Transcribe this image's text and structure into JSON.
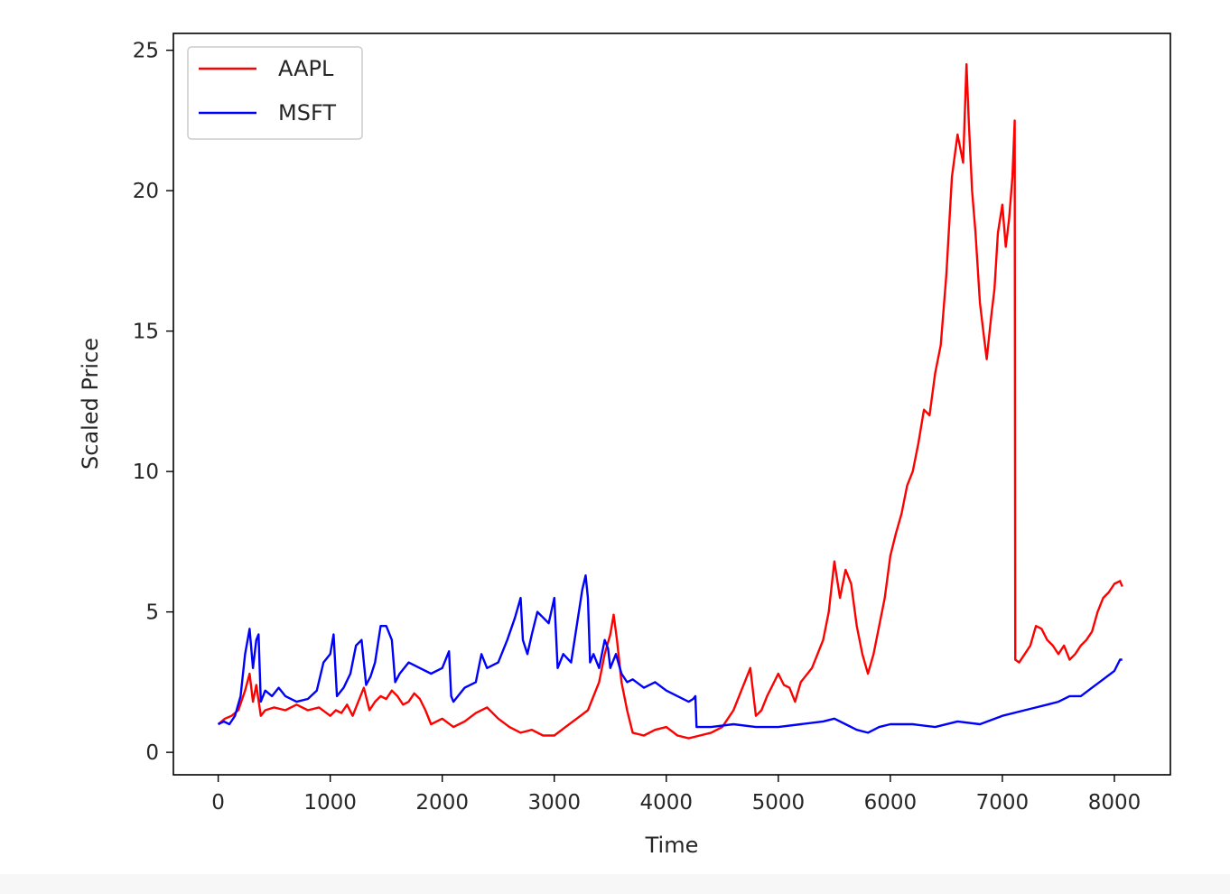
{
  "chart_data": {
    "type": "line",
    "title": "",
    "xlabel": "Time",
    "ylabel": "Scaled Price",
    "xlim": [
      -400,
      8500
    ],
    "ylim": [
      -0.8,
      25.6
    ],
    "xticks": [
      0,
      1000,
      2000,
      3000,
      4000,
      5000,
      6000,
      7000,
      8000
    ],
    "xtick_labels": [
      "0",
      "1000",
      "2000",
      "3000",
      "4000",
      "5000",
      "6000",
      "7000",
      "8000"
    ],
    "yticks": [
      0,
      5,
      10,
      15,
      20,
      25
    ],
    "ytick_labels": [
      "0",
      "5",
      "10",
      "15",
      "20",
      "25"
    ],
    "grid": false,
    "legend_position": "top-left",
    "series": [
      {
        "name": "AAPL",
        "color": "#ff0000",
        "x": [
          0,
          60,
          120,
          180,
          240,
          280,
          310,
          340,
          380,
          420,
          500,
          600,
          700,
          800,
          900,
          1000,
          1050,
          1100,
          1150,
          1200,
          1250,
          1300,
          1350,
          1400,
          1450,
          1500,
          1550,
          1600,
          1650,
          1700,
          1750,
          1800,
          1850,
          1900,
          2000,
          2100,
          2200,
          2300,
          2400,
          2500,
          2600,
          2700,
          2800,
          2900,
          3000,
          3100,
          3200,
          3300,
          3400,
          3450,
          3500,
          3530,
          3560,
          3600,
          3650,
          3700,
          3800,
          3900,
          4000,
          4100,
          4200,
          4300,
          4400,
          4500,
          4600,
          4700,
          4750,
          4800,
          4850,
          4900,
          4950,
          5000,
          5050,
          5100,
          5150,
          5200,
          5300,
          5400,
          5450,
          5500,
          5550,
          5600,
          5650,
          5700,
          5750,
          5800,
          5850,
          5900,
          5950,
          6000,
          6050,
          6100,
          6150,
          6200,
          6250,
          6300,
          6350,
          6400,
          6450,
          6500,
          6550,
          6600,
          6650,
          6680,
          6700,
          6730,
          6760,
          6800,
          6830,
          6860,
          6900,
          6930,
          6960,
          7000,
          7030,
          7060,
          7090,
          7110,
          7115,
          7150,
          7200,
          7250,
          7300,
          7350,
          7400,
          7450,
          7500,
          7550,
          7600,
          7650,
          7700,
          7750,
          7800,
          7850,
          7900,
          7950,
          8000,
          8050,
          8070
        ],
        "y": [
          1.0,
          1.2,
          1.3,
          1.5,
          2.2,
          2.8,
          1.8,
          2.4,
          1.3,
          1.5,
          1.6,
          1.5,
          1.7,
          1.5,
          1.6,
          1.3,
          1.5,
          1.4,
          1.7,
          1.3,
          1.8,
          2.3,
          1.5,
          1.8,
          2.0,
          1.9,
          2.2,
          2.0,
          1.7,
          1.8,
          2.1,
          1.9,
          1.5,
          1.0,
          1.2,
          0.9,
          1.1,
          1.4,
          1.6,
          1.2,
          0.9,
          0.7,
          0.8,
          0.6,
          0.6,
          0.9,
          1.2,
          1.5,
          2.5,
          3.5,
          4.2,
          4.9,
          4.0,
          2.5,
          1.5,
          0.7,
          0.6,
          0.8,
          0.9,
          0.6,
          0.5,
          0.6,
          0.7,
          0.9,
          1.5,
          2.5,
          3.0,
          1.3,
          1.5,
          2.0,
          2.4,
          2.8,
          2.4,
          2.3,
          1.8,
          2.5,
          3.0,
          4.0,
          5.0,
          6.8,
          5.5,
          6.5,
          6.0,
          4.5,
          3.5,
          2.8,
          3.5,
          4.5,
          5.5,
          7.0,
          7.8,
          8.5,
          9.5,
          10.0,
          11.0,
          12.2,
          12.0,
          13.5,
          14.5,
          17.0,
          20.5,
          22.0,
          21.0,
          24.5,
          22.5,
          20.0,
          18.5,
          16.0,
          15.0,
          14.0,
          15.5,
          16.5,
          18.5,
          19.5,
          18.0,
          19.0,
          20.5,
          22.5,
          3.3,
          3.2,
          3.5,
          3.8,
          4.5,
          4.4,
          4.0,
          3.8,
          3.5,
          3.8,
          3.3,
          3.5,
          3.8,
          4.0,
          4.3,
          5.0,
          5.5,
          5.7,
          6.0,
          6.1,
          5.9
        ]
      },
      {
        "name": "MSFT",
        "color": "#0000ff",
        "x": [
          0,
          50,
          100,
          150,
          200,
          240,
          280,
          310,
          340,
          360,
          380,
          420,
          480,
          540,
          600,
          700,
          800,
          880,
          940,
          1000,
          1030,
          1060,
          1120,
          1180,
          1230,
          1280,
          1320,
          1360,
          1400,
          1450,
          1500,
          1550,
          1580,
          1620,
          1700,
          1800,
          1900,
          2000,
          2060,
          2080,
          2100,
          2200,
          2300,
          2350,
          2400,
          2500,
          2580,
          2650,
          2700,
          2720,
          2760,
          2800,
          2850,
          2900,
          2950,
          3000,
          3030,
          3080,
          3150,
          3200,
          3250,
          3280,
          3300,
          3320,
          3350,
          3400,
          3450,
          3480,
          3500,
          3550,
          3600,
          3650,
          3700,
          3800,
          3900,
          4000,
          4100,
          4200,
          4240,
          4260,
          4270,
          4400,
          4600,
          4800,
          5000,
          5200,
          5400,
          5500,
          5600,
          5700,
          5800,
          5900,
          6000,
          6200,
          6400,
          6600,
          6800,
          7000,
          7200,
          7400,
          7500,
          7600,
          7700,
          7800,
          7900,
          8000,
          8050,
          8070
        ],
        "y": [
          1.0,
          1.1,
          1.0,
          1.3,
          2.0,
          3.5,
          4.4,
          3.0,
          4.0,
          4.2,
          1.8,
          2.2,
          2.0,
          2.3,
          2.0,
          1.8,
          1.9,
          2.2,
          3.2,
          3.5,
          4.2,
          2.0,
          2.3,
          2.8,
          3.8,
          4.0,
          2.4,
          2.7,
          3.2,
          4.5,
          4.5,
          4.0,
          2.5,
          2.8,
          3.2,
          3.0,
          2.8,
          3.0,
          3.6,
          2.0,
          1.8,
          2.3,
          2.5,
          3.5,
          3.0,
          3.2,
          4.0,
          4.8,
          5.5,
          4.0,
          3.5,
          4.2,
          5.0,
          4.8,
          4.6,
          5.5,
          3.0,
          3.5,
          3.2,
          4.5,
          5.8,
          6.3,
          5.5,
          3.2,
          3.5,
          3.0,
          4.0,
          3.7,
          3.0,
          3.5,
          2.8,
          2.5,
          2.6,
          2.3,
          2.5,
          2.2,
          2.0,
          1.8,
          1.9,
          2.0,
          0.9,
          0.9,
          1.0,
          0.9,
          0.9,
          1.0,
          1.1,
          1.2,
          1.0,
          0.8,
          0.7,
          0.9,
          1.0,
          1.0,
          0.9,
          1.1,
          1.0,
          1.3,
          1.5,
          1.7,
          1.8,
          2.0,
          2.0,
          2.3,
          2.6,
          2.9,
          3.3,
          3.3
        ]
      }
    ]
  }
}
